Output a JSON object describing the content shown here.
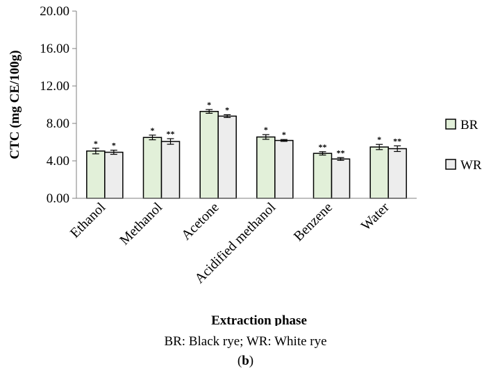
{
  "chart_data": {
    "type": "bar",
    "ylabel": "CTC (mg CE/100g)",
    "xlabel": "Extraction phase",
    "ylim": [
      0,
      20
    ],
    "yticks": [
      "0.00",
      "4.00",
      "8.00",
      "12.00",
      "16.00",
      "20.00"
    ],
    "ytick_values": [
      0,
      4,
      8,
      12,
      16,
      20
    ],
    "grid": false,
    "legend": "right",
    "categories": [
      "Ethanol",
      "Methanol",
      "Acetone",
      "Acidified methanol",
      "Benzene",
      "Water"
    ],
    "series": [
      {
        "name": "BR",
        "color": "#e2f0d9",
        "values": [
          5.05,
          6.5,
          9.28,
          6.55,
          4.8,
          5.48
        ],
        "errors": [
          0.3,
          0.25,
          0.2,
          0.25,
          0.18,
          0.28
        ],
        "markers": [
          "*",
          "*",
          "*",
          "*",
          "**",
          "*"
        ]
      },
      {
        "name": "WR",
        "color": "#ededed",
        "values": [
          4.92,
          6.07,
          8.78,
          6.18,
          4.2,
          5.3
        ],
        "errors": [
          0.22,
          0.3,
          0.15,
          0.1,
          0.15,
          0.3
        ],
        "markers": [
          "*",
          "**",
          "*",
          "*",
          "**",
          "**"
        ]
      }
    ]
  },
  "caption": {
    "note": "BR: Black rye; WR: White rye",
    "panel_open": "(",
    "panel_letter": "b",
    "panel_close": ")"
  }
}
